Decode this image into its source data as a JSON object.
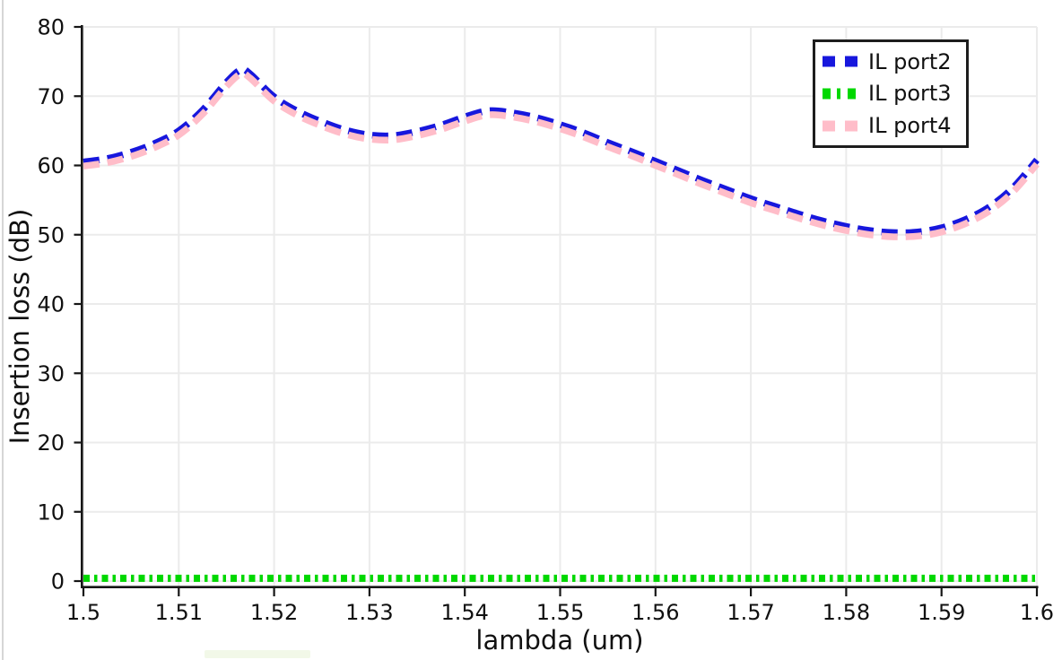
{
  "page": {
    "background": "#ffffff"
  },
  "chart_data": {
    "type": "line",
    "title": "",
    "xlabel": "lambda (um)",
    "ylabel": "Insertion loss (dB)",
    "xlim": [
      1.5,
      1.6
    ],
    "ylim": [
      0,
      80
    ],
    "grid": true,
    "legend_position": "top-right",
    "axis_color": "#161616",
    "grid_color": "#ebebeb",
    "text_color": "#111111",
    "x_tick_values": [
      1.5,
      1.51,
      1.52,
      1.53,
      1.54,
      1.55,
      1.56,
      1.57,
      1.58,
      1.59,
      1.6
    ],
    "x_tick_labels": [
      "1.5",
      "1.51",
      "1.52",
      "1.53",
      "1.54",
      "1.55",
      "1.56",
      "1.57",
      "1.58",
      "1.59",
      "1.6"
    ],
    "y_tick_values": [
      0,
      10,
      20,
      30,
      40,
      50,
      60,
      70,
      80
    ],
    "y_tick_labels": [
      "0",
      "10",
      "20",
      "30",
      "40",
      "50",
      "60",
      "70",
      "80"
    ],
    "series": [
      {
        "name": "IL port2",
        "color": "#1717dd",
        "style": "dashed",
        "x": [
          1.5,
          1.5025,
          1.505,
          1.5075,
          1.51,
          1.5125,
          1.515,
          1.5165,
          1.5175,
          1.52,
          1.5225,
          1.525,
          1.5275,
          1.53,
          1.5325,
          1.535,
          1.5375,
          1.54,
          1.5425,
          1.545,
          1.5475,
          1.55,
          1.5525,
          1.555,
          1.5575,
          1.56,
          1.5625,
          1.565,
          1.5675,
          1.57,
          1.5725,
          1.575,
          1.5775,
          1.58,
          1.5825,
          1.585,
          1.5875,
          1.59,
          1.5925,
          1.595,
          1.5975,
          1.6
        ],
        "y": [
          60.5,
          61.0,
          61.9,
          63.2,
          65.0,
          68.0,
          72.0,
          73.8,
          73.2,
          69.9,
          67.8,
          66.3,
          65.1,
          64.4,
          64.3,
          64.9,
          65.8,
          67.0,
          67.9,
          67.6,
          66.9,
          65.9,
          64.7,
          63.3,
          62.0,
          60.6,
          59.2,
          57.8,
          56.5,
          55.2,
          54.1,
          53.0,
          52.0,
          51.2,
          50.6,
          50.3,
          50.4,
          51.0,
          52.2,
          54.0,
          56.8,
          60.8
        ]
      },
      {
        "name": "IL port3",
        "color": "#00d800",
        "style": "dash-dot",
        "x": [
          1.5,
          1.6
        ],
        "y": [
          0.4,
          0.4
        ]
      },
      {
        "name": "IL port4",
        "color": "#ffbdc9",
        "style": "dashed",
        "x": [
          1.5,
          1.5025,
          1.505,
          1.5075,
          1.51,
          1.5125,
          1.515,
          1.5165,
          1.5175,
          1.52,
          1.5225,
          1.525,
          1.5275,
          1.53,
          1.5325,
          1.535,
          1.5375,
          1.54,
          1.5425,
          1.545,
          1.5475,
          1.55,
          1.5525,
          1.555,
          1.5575,
          1.56,
          1.5625,
          1.565,
          1.5675,
          1.57,
          1.5725,
          1.575,
          1.5775,
          1.58,
          1.5825,
          1.585,
          1.5875,
          1.59,
          1.5925,
          1.595,
          1.5975,
          1.6
        ],
        "y": [
          59.9,
          60.4,
          61.3,
          62.6,
          64.4,
          67.4,
          71.4,
          73.2,
          72.6,
          69.3,
          67.2,
          65.7,
          64.5,
          63.8,
          63.7,
          64.3,
          65.2,
          66.4,
          67.3,
          67.0,
          66.3,
          65.3,
          64.1,
          62.7,
          61.4,
          60.0,
          58.6,
          57.2,
          55.9,
          54.6,
          53.5,
          52.4,
          51.4,
          50.6,
          50.0,
          49.7,
          49.8,
          50.4,
          51.6,
          53.4,
          56.2,
          60.2
        ]
      }
    ]
  }
}
